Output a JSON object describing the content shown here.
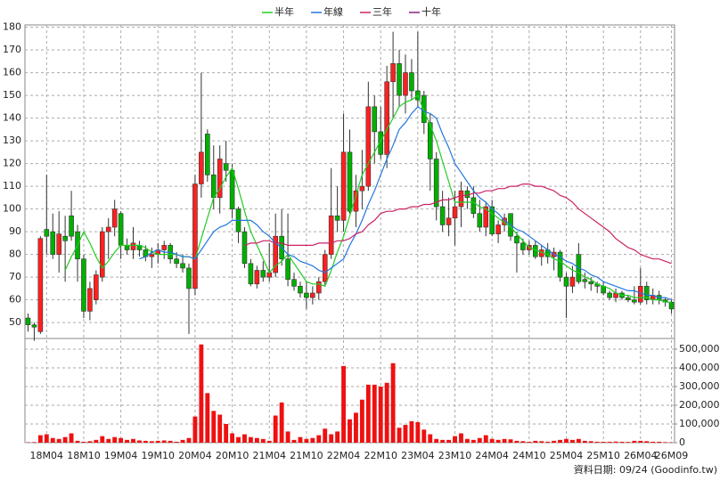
{
  "chart_data": {
    "type": "candlestick",
    "legend_position": "top",
    "grid": true,
    "categories": [
      null,
      null,
      null,
      "18M04",
      null,
      null,
      null,
      null,
      null,
      "18M10",
      null,
      null,
      null,
      null,
      null,
      "19M04",
      null,
      null,
      null,
      null,
      null,
      "19M10",
      null,
      null,
      null,
      null,
      null,
      "20M04",
      null,
      null,
      null,
      null,
      null,
      "20M10",
      null,
      null,
      null,
      null,
      null,
      "21M04",
      null,
      null,
      null,
      null,
      null,
      "21M10",
      null,
      null,
      null,
      null,
      null,
      "22M04",
      null,
      null,
      null,
      null,
      null,
      "22M10",
      null,
      null,
      null,
      null,
      null,
      "23M04",
      null,
      null,
      null,
      null,
      null,
      "23M10",
      null,
      null,
      null,
      null,
      null,
      "24M04",
      null,
      null,
      null,
      null,
      null,
      "24M10",
      null,
      null,
      null,
      null,
      null,
      "25M04",
      null,
      null,
      null,
      null,
      null,
      "25M10",
      null,
      null,
      null,
      null,
      null,
      "26M04",
      null,
      null,
      null,
      null,
      "26M09"
    ],
    "open": [
      52,
      49,
      46,
      91,
      90,
      80,
      88,
      97,
      90,
      78,
      55,
      60,
      70,
      90,
      92,
      98,
      84,
      82,
      84,
      82,
      79,
      80,
      82,
      84,
      78,
      76,
      74,
      65,
      111,
      133,
      115,
      105,
      120,
      117,
      100,
      90,
      76,
      67,
      73,
      70,
      72,
      88,
      78,
      69,
      66,
      63,
      61,
      63,
      68,
      80,
      97,
      95,
      125,
      99,
      108,
      110,
      145,
      134,
      124,
      156,
      164,
      150,
      160,
      152,
      150,
      138,
      122,
      101,
      93,
      96,
      101,
      108,
      105,
      98,
      92,
      101,
      89,
      93,
      98,
      88,
      85,
      82,
      84,
      79,
      82,
      79,
      81,
      70,
      66,
      80,
      69,
      68,
      67,
      66,
      63,
      61,
      63,
      61,
      60,
      59,
      66,
      60,
      62,
      60,
      59
    ],
    "high": [
      54,
      50,
      88,
      115,
      98,
      99,
      97,
      108,
      93,
      80,
      68,
      73,
      92,
      96,
      104,
      99,
      87,
      92,
      86,
      84,
      83,
      85,
      86,
      85,
      81,
      80,
      76,
      115,
      160,
      135,
      128,
      128,
      130,
      120,
      101,
      92,
      78,
      75,
      77,
      85,
      98,
      100,
      98,
      72,
      68,
      68,
      66,
      70,
      82,
      118,
      110,
      142,
      135,
      115,
      126,
      156,
      150,
      145,
      163,
      178,
      170,
      168,
      166,
      178,
      152,
      142,
      125,
      108,
      105,
      108,
      112,
      110,
      110,
      104,
      103,
      104,
      95,
      98,
      98,
      90,
      87,
      86,
      86,
      84,
      85,
      83,
      82,
      72,
      75,
      85,
      72,
      70,
      68,
      68,
      64,
      65,
      64,
      62,
      66,
      74,
      68,
      65,
      64,
      61,
      60
    ],
    "low": [
      46,
      42,
      45,
      80,
      78,
      72,
      68,
      86,
      68,
      52,
      51,
      58,
      68,
      78,
      88,
      78,
      80,
      78,
      79,
      77,
      74,
      76,
      78,
      76,
      74,
      72,
      45,
      62,
      105,
      112,
      100,
      98,
      112,
      96,
      85,
      74,
      66,
      65,
      68,
      68,
      70,
      75,
      66,
      64,
      61,
      56,
      58,
      60,
      66,
      78,
      90,
      90,
      98,
      92,
      100,
      108,
      120,
      122,
      118,
      140,
      145,
      142,
      148,
      145,
      133,
      108,
      95,
      90,
      88,
      84,
      92,
      100,
      96,
      90,
      88,
      88,
      85,
      90,
      86,
      72,
      80,
      80,
      78,
      75,
      76,
      73,
      68,
      52,
      63,
      67,
      65,
      64,
      63,
      62,
      60,
      59,
      60,
      59,
      58,
      58,
      58,
      58,
      58,
      57,
      54
    ],
    "close": [
      49,
      48,
      87,
      88,
      80,
      89,
      86,
      88,
      78,
      55,
      65,
      71,
      90,
      92,
      100,
      84,
      82,
      85,
      82,
      79,
      80,
      82,
      84,
      78,
      76,
      74,
      65,
      111,
      125,
      115,
      105,
      122,
      117,
      100,
      90,
      76,
      67,
      73,
      70,
      72,
      88,
      78,
      69,
      66,
      63,
      61,
      63,
      68,
      80,
      97,
      95,
      125,
      99,
      108,
      110,
      145,
      134,
      124,
      156,
      164,
      150,
      160,
      152,
      148,
      138,
      122,
      101,
      93,
      96,
      101,
      108,
      105,
      98,
      92,
      101,
      89,
      93,
      96,
      88,
      85,
      82,
      84,
      79,
      82,
      79,
      81,
      70,
      66,
      70,
      68,
      68,
      67,
      66,
      63,
      61,
      63,
      61,
      60,
      59,
      66,
      60,
      62,
      60,
      59,
      56
    ],
    "up_color": "#ff2020",
    "down_color": "#00b000",
    "ylim": [
      43,
      181
    ],
    "yticks": [
      50,
      60,
      70,
      80,
      90,
      100,
      110,
      120,
      130,
      140,
      150,
      160,
      170,
      180
    ],
    "series": [
      {
        "name": "半年",
        "color": "#22cc22",
        "values": [
          null,
          null,
          null,
          null,
          null,
          null,
          73,
          79,
          84,
          90,
          85,
          79,
          74,
          77,
          81,
          84,
          84,
          84,
          84,
          83,
          81,
          80,
          80,
          80,
          80,
          79,
          79,
          78,
          87,
          96,
          105,
          109,
          114,
          118,
          109,
          99,
          90,
          84,
          78,
          72,
          75,
          77,
          80,
          76,
          72,
          68,
          67,
          67,
          66,
          73,
          81,
          88,
          97,
          106,
          115,
          120,
          125,
          130,
          135,
          140,
          145,
          147,
          148,
          150,
          143,
          137,
          130,
          121,
          112,
          103,
          103,
          103,
          103,
          101,
          100,
          98,
          96,
          94,
          92,
          89,
          86,
          83,
          82,
          81,
          80,
          78,
          77,
          75,
          73,
          72,
          70,
          69,
          67,
          66,
          65,
          63,
          62,
          62,
          61,
          61,
          61,
          60,
          60,
          59,
          59
        ]
      },
      {
        "name": "年線",
        "color": "#2277dd",
        "values": [
          null,
          null,
          null,
          null,
          null,
          null,
          null,
          null,
          null,
          null,
          null,
          null,
          null,
          null,
          null,
          null,
          null,
          null,
          78,
          79,
          81,
          82,
          81,
          81,
          80,
          79,
          79,
          78,
          82,
          86,
          90,
          92,
          93,
          95,
          95,
          95,
          95,
          93,
          90,
          88,
          85,
          83,
          80,
          79,
          77,
          76,
          75,
          73,
          72,
          74,
          76,
          78,
          84,
          89,
          95,
          102,
          108,
          115,
          122,
          128,
          135,
          138,
          142,
          145,
          143,
          142,
          140,
          133,
          127,
          120,
          116,
          112,
          108,
          105,
          103,
          100,
          98,
          95,
          93,
          91,
          90,
          88,
          86,
          84,
          82,
          80,
          79,
          77,
          76,
          74,
          73,
          71,
          70,
          68,
          67,
          66,
          65,
          64,
          64,
          63,
          62,
          62,
          61,
          61,
          60
        ]
      },
      {
        "name": "三年",
        "color": "#cc2266",
        "values": [
          null,
          null,
          null,
          null,
          null,
          null,
          null,
          null,
          null,
          null,
          null,
          null,
          null,
          null,
          null,
          null,
          null,
          null,
          null,
          null,
          null,
          null,
          null,
          null,
          null,
          null,
          null,
          null,
          null,
          null,
          null,
          null,
          null,
          null,
          null,
          84,
          85,
          85,
          86,
          86,
          85,
          85,
          84,
          84,
          84,
          84,
          84,
          85,
          85,
          85,
          86,
          86,
          87,
          89,
          90,
          93,
          95,
          98,
          99,
          99,
          100,
          100,
          101,
          101,
          102,
          102,
          103,
          104,
          104,
          105,
          106,
          106,
          107,
          107,
          108,
          108,
          109,
          109,
          110,
          110,
          111,
          111,
          110,
          110,
          109,
          108,
          106,
          105,
          103,
          100,
          98,
          96,
          94,
          92,
          90,
          87,
          85,
          83,
          82,
          80,
          79,
          78,
          78,
          77,
          76
        ]
      },
      {
        "name": "十年",
        "color": "#882288",
        "values": [
          null,
          null,
          null,
          null,
          null,
          null,
          null,
          null,
          null,
          null,
          null,
          null,
          null,
          null,
          null,
          null,
          null,
          null,
          null,
          null,
          null,
          null,
          null,
          null,
          null,
          null,
          null,
          null,
          null,
          null,
          null,
          null,
          null,
          null,
          null,
          null,
          null,
          null,
          null,
          null,
          null,
          null,
          null,
          null,
          null,
          null,
          null,
          null,
          null,
          null,
          null,
          null,
          null,
          null,
          null,
          null,
          null,
          null,
          null,
          null,
          null,
          null,
          null,
          null,
          null,
          null,
          null,
          null,
          null,
          null,
          null,
          null,
          null,
          null,
          null,
          null,
          null,
          null,
          null,
          null,
          null,
          null,
          null,
          null,
          null,
          null,
          null,
          null,
          null,
          null,
          null,
          null,
          null,
          null,
          null,
          null,
          null,
          null,
          null,
          null,
          null,
          null,
          null,
          null,
          null
        ]
      }
    ],
    "volume": {
      "color": "#ee1111",
      "ylim": [
        0,
        557000
      ],
      "yticks": [
        0,
        {
          "value": 100000,
          "label": "100,000"
        },
        {
          "value": 200000,
          "label": "200,000"
        },
        {
          "value": 300000,
          "label": "300,000"
        },
        {
          "value": 400000,
          "label": "400,000"
        },
        {
          "value": 500000,
          "label": "500,000"
        }
      ],
      "values": [
        2000,
        3000,
        40000,
        45000,
        25000,
        20000,
        30000,
        50000,
        10000,
        5000,
        8000,
        15000,
        35000,
        20000,
        30000,
        25000,
        15000,
        20000,
        12000,
        10000,
        8000,
        10000,
        12000,
        10000,
        5000,
        15000,
        25000,
        140000,
        525000,
        265000,
        170000,
        150000,
        100000,
        50000,
        30000,
        45000,
        30000,
        25000,
        20000,
        10000,
        145000,
        215000,
        60000,
        15000,
        30000,
        20000,
        25000,
        40000,
        75000,
        45000,
        60000,
        410000,
        125000,
        160000,
        230000,
        310000,
        310000,
        300000,
        320000,
        425000,
        80000,
        95000,
        115000,
        110000,
        70000,
        45000,
        20000,
        15000,
        15000,
        35000,
        50000,
        20000,
        15000,
        25000,
        40000,
        20000,
        15000,
        20000,
        18000,
        10000,
        8000,
        5000,
        10000,
        8000,
        5000,
        10000,
        15000,
        20000,
        15000,
        20000,
        10000,
        8000,
        5000,
        5000,
        5000,
        6000,
        5000,
        4000,
        10000,
        10000,
        8000,
        5000,
        5000,
        3000,
        2000
      ]
    },
    "footnote": "資料日期: 09/24 (Goodinfo.tw)"
  }
}
